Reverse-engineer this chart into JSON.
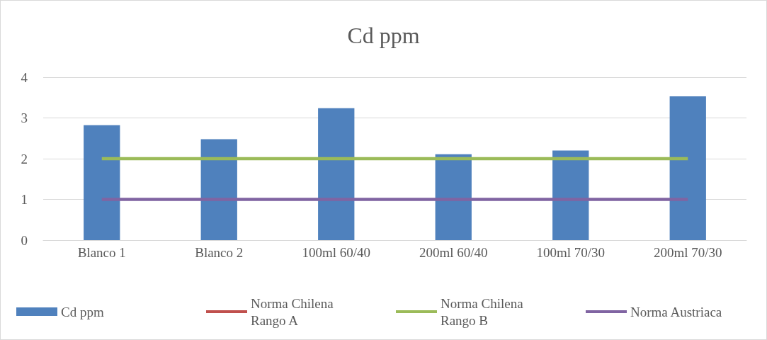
{
  "chart_data": {
    "type": "bar",
    "title": "Cd ppm",
    "categories": [
      "Blanco 1",
      "Blanco 2",
      "100ml 60/40",
      "200ml 60/40",
      "100ml 70/30",
      "200ml 70/30"
    ],
    "series": [
      {
        "name": "Cd ppm",
        "color": "#4f81bd",
        "values": [
          2.82,
          2.48,
          3.24,
          2.11,
          2.2,
          3.53
        ]
      },
      {
        "name": "Norma Chilena Rango A",
        "type": "line",
        "color": "#c0504d",
        "values": [
          null,
          null,
          null,
          null,
          null,
          null
        ]
      },
      {
        "name": "Norma Chilena Rango B",
        "type": "line",
        "color": "#9bbb59",
        "values": [
          2,
          2,
          2,
          2,
          2,
          2
        ]
      },
      {
        "name": "Norma Austriaca",
        "type": "line",
        "color": "#8064a2",
        "values": [
          1,
          1,
          1,
          1,
          1,
          1
        ]
      }
    ],
    "ylim": [
      0,
      4
    ],
    "yticks": [
      0,
      1,
      2,
      3,
      4
    ],
    "grid": "y",
    "legend": "bottom",
    "marker": "none"
  }
}
